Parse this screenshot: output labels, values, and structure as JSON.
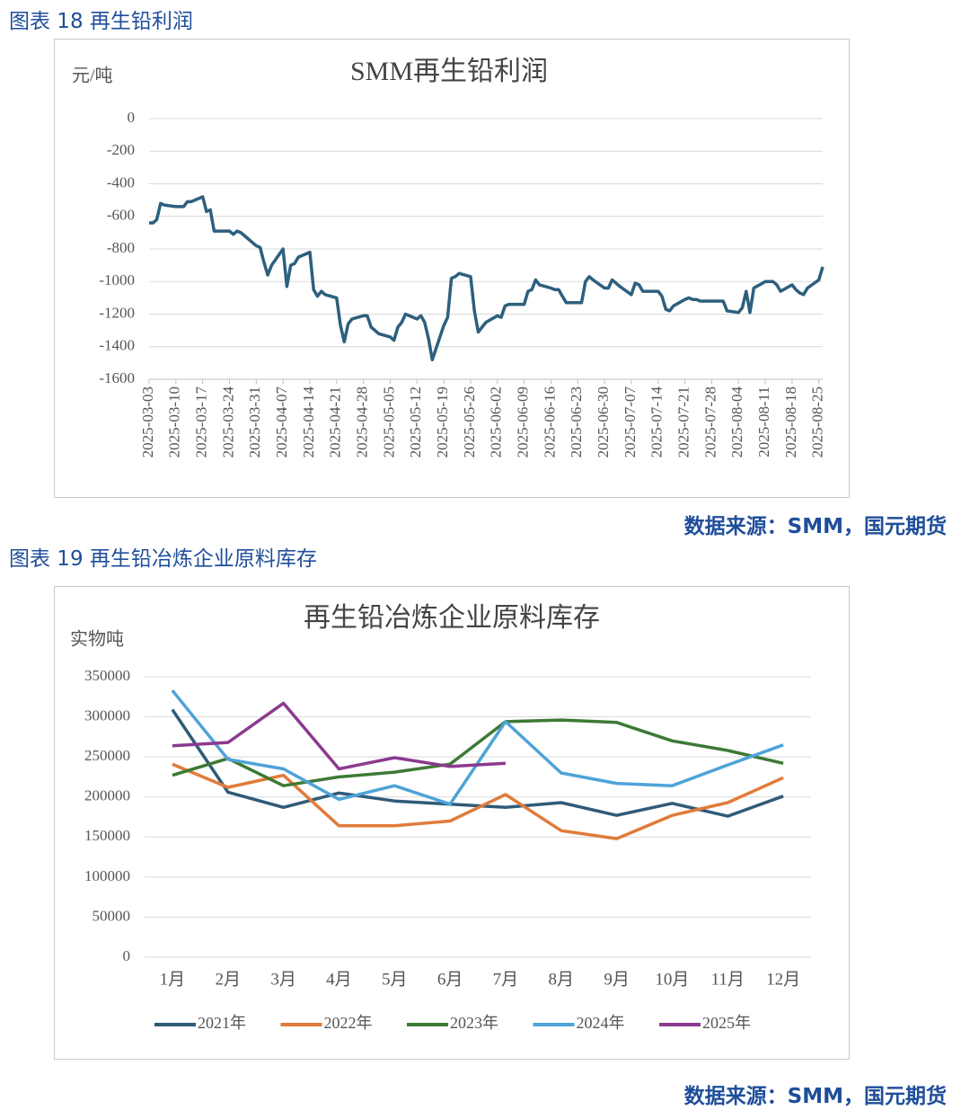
{
  "captions": [
    "图表 18 再生铅利润",
    "图表 19 再生铅冶炼企业原料库存"
  ],
  "sources": [
    "数据来源：SMM，国元期货",
    "数据来源：SMM，国元期货"
  ],
  "chart_data": [
    {
      "type": "line",
      "title": "SMM再生铅利润",
      "y_label": "元/吨",
      "color": "#2d5f7e",
      "grid": true,
      "x": [
        "2025-03-03",
        "2025-03-04",
        "2025-03-05",
        "2025-03-06",
        "2025-03-07",
        "2025-03-10",
        "2025-03-11",
        "2025-03-12",
        "2025-03-13",
        "2025-03-14",
        "2025-03-17",
        "2025-03-18",
        "2025-03-19",
        "2025-03-20",
        "2025-03-21",
        "2025-03-24",
        "2025-03-25",
        "2025-03-26",
        "2025-03-27",
        "2025-03-28",
        "2025-03-31",
        "2025-04-01",
        "2025-04-02",
        "2025-04-03",
        "2025-04-04",
        "2025-04-07",
        "2025-04-08",
        "2025-04-09",
        "2025-04-10",
        "2025-04-11",
        "2025-04-14",
        "2025-04-15",
        "2025-04-16",
        "2025-04-17",
        "2025-04-18",
        "2025-04-21",
        "2025-04-22",
        "2025-04-23",
        "2025-04-24",
        "2025-04-25",
        "2025-04-28",
        "2025-04-29",
        "2025-04-30",
        "2025-05-01",
        "2025-05-02",
        "2025-05-05",
        "2025-05-06",
        "2025-05-07",
        "2025-05-08",
        "2025-05-09",
        "2025-05-12",
        "2025-05-13",
        "2025-05-14",
        "2025-05-15",
        "2025-05-16",
        "2025-05-19",
        "2025-05-20",
        "2025-05-21",
        "2025-05-22",
        "2025-05-23",
        "2025-05-26",
        "2025-05-27",
        "2025-05-28",
        "2025-05-29",
        "2025-05-30",
        "2025-06-02",
        "2025-06-03",
        "2025-06-04",
        "2025-06-05",
        "2025-06-06",
        "2025-06-09",
        "2025-06-10",
        "2025-06-11",
        "2025-06-12",
        "2025-06-13",
        "2025-06-16",
        "2025-06-17",
        "2025-06-18",
        "2025-06-19",
        "2025-06-20",
        "2025-06-23",
        "2025-06-24",
        "2025-06-25",
        "2025-06-26",
        "2025-06-27",
        "2025-06-30",
        "2025-07-01",
        "2025-07-02",
        "2025-07-03",
        "2025-07-04",
        "2025-07-07",
        "2025-07-08",
        "2025-07-09",
        "2025-07-10",
        "2025-07-11",
        "2025-07-14",
        "2025-07-15",
        "2025-07-16",
        "2025-07-17",
        "2025-07-18",
        "2025-07-21",
        "2025-07-22",
        "2025-07-23",
        "2025-07-24",
        "2025-07-25",
        "2025-07-28",
        "2025-07-29",
        "2025-07-30",
        "2025-07-31",
        "2025-08-01",
        "2025-08-04",
        "2025-08-05",
        "2025-08-06",
        "2025-08-07",
        "2025-08-08",
        "2025-08-11",
        "2025-08-12",
        "2025-08-13",
        "2025-08-14",
        "2025-08-15",
        "2025-08-18",
        "2025-08-19",
        "2025-08-20",
        "2025-08-21",
        "2025-08-22",
        "2025-08-25",
        "2025-08-26"
      ],
      "values": [
        -640,
        -640,
        -620,
        -520,
        -530,
        -540,
        -540,
        -540,
        -510,
        -510,
        -480,
        -570,
        -560,
        -690,
        -690,
        -690,
        -710,
        -690,
        -700,
        -720,
        -780,
        -790,
        -880,
        -960,
        -900,
        -800,
        -1030,
        -900,
        -890,
        -850,
        -820,
        -1050,
        -1090,
        -1060,
        -1080,
        -1100,
        -1270,
        -1370,
        -1260,
        -1230,
        -1210,
        -1210,
        -1280,
        -1300,
        -1320,
        -1340,
        -1360,
        -1280,
        -1250,
        -1200,
        -1230,
        -1210,
        -1250,
        -1350,
        -1480,
        -1270,
        -1220,
        -980,
        -970,
        -950,
        -970,
        -1180,
        -1310,
        -1280,
        -1250,
        -1210,
        -1220,
        -1150,
        -1140,
        -1140,
        -1140,
        -1060,
        -1050,
        -990,
        -1020,
        -1040,
        -1050,
        -1050,
        -1090,
        -1130,
        -1130,
        -1130,
        -1000,
        -970,
        -990,
        -1040,
        -1040,
        -990,
        -1010,
        -1030,
        -1080,
        -1010,
        -1020,
        -1060,
        -1060,
        -1060,
        -1090,
        -1170,
        -1180,
        -1150,
        -1110,
        -1100,
        -1110,
        -1110,
        -1120,
        -1120,
        -1120,
        -1120,
        -1120,
        -1180,
        -1190,
        -1160,
        -1060,
        -1190,
        -1040,
        -1000,
        -1000,
        -1000,
        -1020,
        -1060,
        -1020,
        -1050,
        -1070,
        -1080,
        -1040,
        -990,
        -910
      ],
      "xlim": [
        "2025-03-03",
        "2025-08-26"
      ],
      "xticks": [
        "2025-03-03",
        "2025-03-10",
        "2025-03-17",
        "2025-03-24",
        "2025-03-31",
        "2025-04-07",
        "2025-04-14",
        "2025-04-21",
        "2025-04-28",
        "2025-05-05",
        "2025-05-12",
        "2025-05-19",
        "2025-05-26",
        "2025-06-02",
        "2025-06-09",
        "2025-06-16",
        "2025-06-23",
        "2025-06-30",
        "2025-07-07",
        "2025-07-14",
        "2025-07-21",
        "2025-07-28",
        "2025-08-04",
        "2025-08-11",
        "2025-08-18",
        "2025-08-25"
      ],
      "ylim": [
        -1600,
        0
      ],
      "yticks": [
        0,
        -200,
        -400,
        -600,
        -800,
        -1000,
        -1200,
        -1400,
        -1600
      ]
    },
    {
      "type": "line",
      "title": "再生铅冶炼企业原料库存",
      "y_label": "实物吨",
      "grid": true,
      "legend": "bottom",
      "categories": [
        "1月",
        "2月",
        "3月",
        "4月",
        "5月",
        "6月",
        "7月",
        "8月",
        "9月",
        "10月",
        "11月",
        "12月"
      ],
      "series": [
        {
          "name": "2021年",
          "color": "#2f5b78",
          "values": [
            309000,
            206000,
            187000,
            205000,
            195000,
            191000,
            187000,
            193000,
            177000,
            192000,
            176000,
            201000
          ]
        },
        {
          "name": "2022年",
          "color": "#e07b39",
          "values": [
            241000,
            212000,
            227000,
            164000,
            164000,
            170000,
            203000,
            158000,
            148000,
            177000,
            193000,
            224000
          ]
        },
        {
          "name": "2023年",
          "color": "#3d7a35",
          "values": [
            227000,
            248000,
            214000,
            225000,
            231000,
            241000,
            294000,
            296000,
            293000,
            270000,
            258000,
            242000
          ]
        },
        {
          "name": "2024年",
          "color": "#4ea3d8",
          "values": [
            333000,
            247000,
            235000,
            197000,
            214000,
            191000,
            294000,
            230000,
            217000,
            214000,
            240000,
            265000
          ]
        },
        {
          "name": "2025年",
          "color": "#8b3a8f",
          "values": [
            264000,
            268000,
            317000,
            235000,
            249000,
            238000,
            242000,
            null,
            null,
            null,
            null,
            null
          ]
        }
      ],
      "ylim": [
        0,
        350000
      ],
      "yticks": [
        0,
        50000,
        100000,
        150000,
        200000,
        250000,
        300000,
        350000
      ]
    }
  ]
}
